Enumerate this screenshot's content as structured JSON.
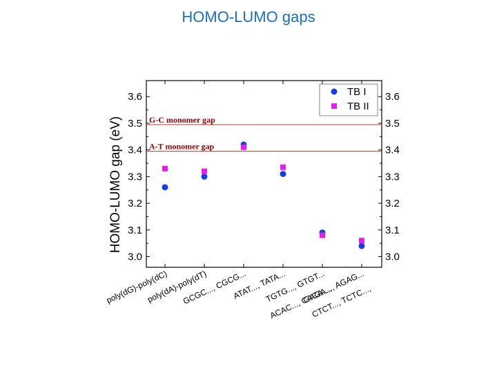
{
  "slide": {
    "title": "HOMO-LUMO gaps"
  },
  "chart_data": {
    "type": "scatter",
    "title": "",
    "xlabel": "",
    "ylabel": "HOMO-LUMO gap (eV)",
    "ylim": [
      2.96,
      3.66
    ],
    "yticks": [
      3.0,
      3.1,
      3.2,
      3.3,
      3.4,
      3.5,
      3.6
    ],
    "ytick_labels": [
      "3.0",
      "3.1",
      "3.2",
      "3.3",
      "3.4",
      "3.5",
      "3.6"
    ],
    "categories": [
      "poly(dG)-poly(dC)",
      "poly(dA)-poly(dT)",
      "GCGC..., CGCG...",
      "ATAT..., TATA...",
      "ACAC..., CACA..., TGTG..., GTGT...",
      "CTCT..., TCTC..., GAGA..., AGAG..."
    ],
    "series": [
      {
        "name": "TB I",
        "marker": "circle",
        "color": "#1a3fd6",
        "values": [
          3.26,
          3.3,
          3.42,
          3.31,
          3.09,
          3.04
        ]
      },
      {
        "name": "TB II",
        "marker": "square",
        "color": "#e11fe6",
        "values": [
          3.33,
          3.32,
          3.41,
          3.335,
          3.08,
          3.06
        ]
      }
    ],
    "reference_lines": [
      {
        "label": "G-C monomer gap",
        "value": 3.495,
        "color": "#c0392b"
      },
      {
        "label": "A-T monomer gap",
        "value": 3.395,
        "color": "#c0392b"
      }
    ],
    "grid": false,
    "legend_position": "top-right",
    "right_axis_mirrored": true
  }
}
